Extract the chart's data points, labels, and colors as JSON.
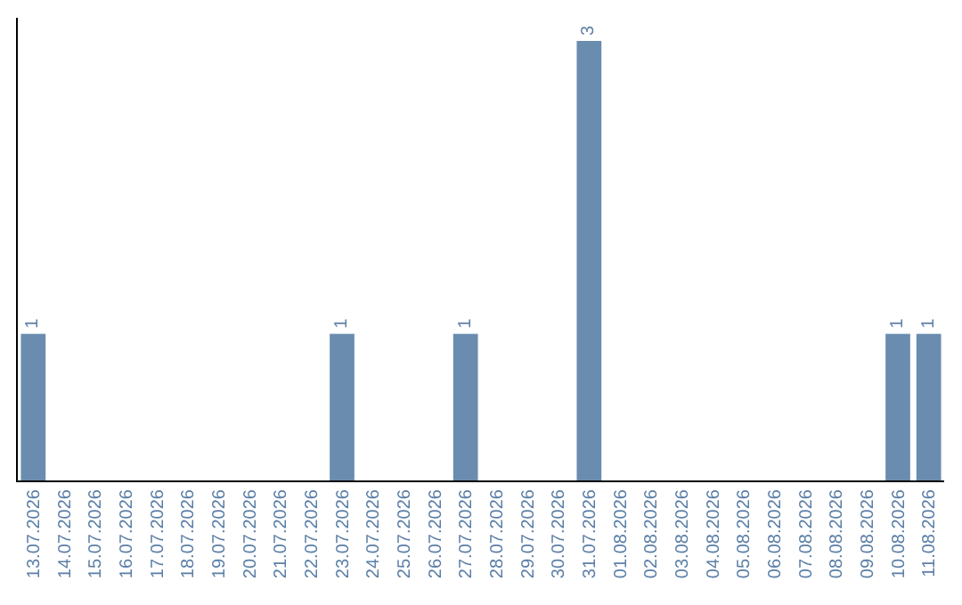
{
  "chart_data": {
    "type": "bar",
    "categories": [
      "13.07.2026",
      "14.07.2026",
      "15.07.2026",
      "16.07.2026",
      "17.07.2026",
      "18.07.2026",
      "19.07.2026",
      "20.07.2026",
      "21.07.2026",
      "22.07.2026",
      "23.07.2026",
      "24.07.2026",
      "25.07.2026",
      "26.07.2026",
      "27.07.2026",
      "28.07.2026",
      "29.07.2026",
      "30.07.2026",
      "31.07.2026",
      "01.08.2026",
      "02.08.2026",
      "03.08.2026",
      "04.08.2026",
      "05.08.2026",
      "06.08.2026",
      "07.08.2026",
      "08.08.2026",
      "09.08.2026",
      "10.08.2026",
      "11.08.2026"
    ],
    "values": [
      1,
      0,
      0,
      0,
      0,
      0,
      0,
      0,
      0,
      0,
      1,
      0,
      0,
      0,
      1,
      0,
      0,
      0,
      3,
      0,
      0,
      0,
      0,
      0,
      0,
      0,
      0,
      0,
      1,
      1
    ],
    "value_labels": [
      "1",
      null,
      null,
      null,
      null,
      null,
      null,
      null,
      null,
      null,
      "1",
      null,
      null,
      null,
      "1",
      null,
      null,
      null,
      "3",
      null,
      null,
      null,
      null,
      null,
      null,
      null,
      null,
      null,
      "1",
      "1"
    ],
    "color": "#6a8caf",
    "tick_labels": "x",
    "legend": false
  }
}
